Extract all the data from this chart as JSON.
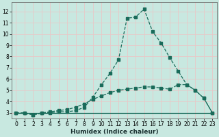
{
  "xlabel": "Humidex (Indice chaleur)",
  "background_color": "#c8e8e0",
  "grid_color": "#e8c8c8",
  "line_color": "#1a6b5a",
  "xlim": [
    -0.5,
    23.5
  ],
  "ylim": [
    2.5,
    12.8
  ],
  "yticks": [
    3,
    4,
    5,
    6,
    7,
    8,
    9,
    10,
    11,
    12
  ],
  "xticks": [
    0,
    1,
    2,
    3,
    4,
    5,
    6,
    7,
    8,
    9,
    10,
    11,
    12,
    13,
    14,
    15,
    16,
    17,
    18,
    19,
    20,
    21,
    22,
    23
  ],
  "curve1_x": [
    0,
    1,
    2,
    3,
    4,
    5,
    6,
    7,
    8,
    9,
    10,
    11,
    12,
    13,
    14,
    15,
    16,
    17,
    18,
    19,
    20,
    21,
    22,
    23
  ],
  "curve1_y": [
    3.0,
    3.0,
    2.8,
    3.0,
    3.0,
    3.1,
    3.1,
    3.2,
    3.5,
    4.4,
    5.5,
    6.5,
    7.7,
    11.4,
    11.5,
    12.2,
    10.2,
    9.2,
    7.9,
    6.7,
    5.5,
    5.0,
    4.3,
    3.0
  ],
  "curve2_x": [
    0,
    1,
    2,
    3,
    4,
    5,
    6,
    7,
    8,
    9,
    10,
    11,
    12,
    13,
    14,
    15,
    16,
    17,
    18,
    19,
    20,
    21,
    22,
    23
  ],
  "curve2_y": [
    3.0,
    3.0,
    2.8,
    3.0,
    3.1,
    3.2,
    3.3,
    3.5,
    3.8,
    4.2,
    4.5,
    4.8,
    5.0,
    5.1,
    5.2,
    5.3,
    5.3,
    5.2,
    5.1,
    5.5,
    5.5,
    5.0,
    4.3,
    3.0
  ],
  "curve3_x": [
    0,
    23
  ],
  "curve3_y": [
    3.0,
    3.0
  ]
}
